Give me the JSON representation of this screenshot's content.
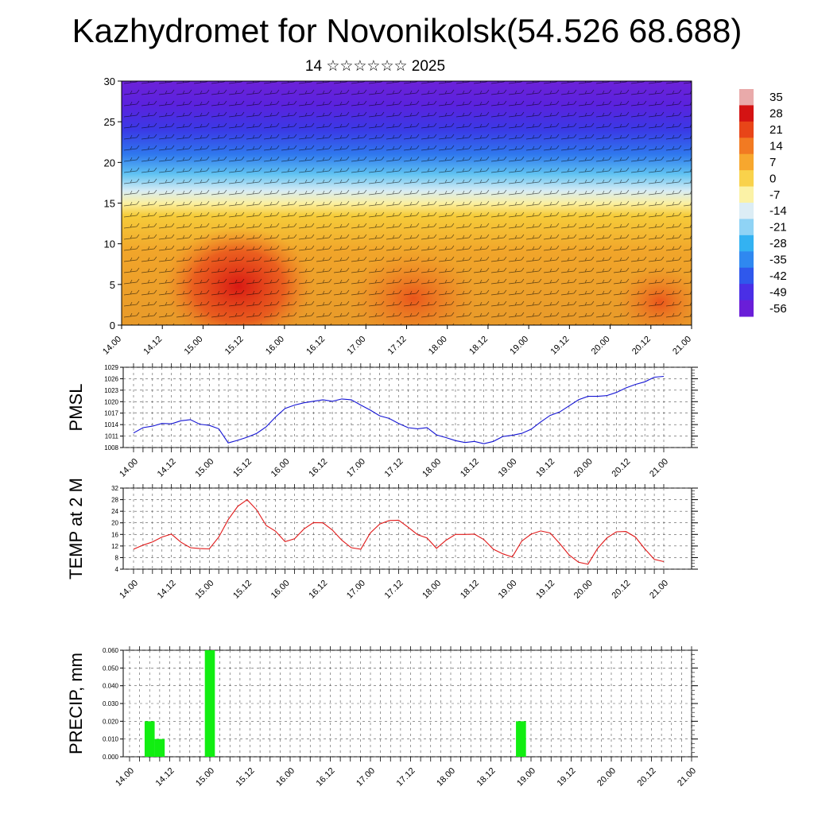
{
  "title": "Kazhydromet for Novonikolsk(54.526 68.688)",
  "subtitle": "14 ☆☆☆☆☆☆ 2025",
  "time_labels": [
    "14.00",
    "14.12",
    "15.00",
    "15.12",
    "16.00",
    "16.12",
    "17.00",
    "17.12",
    "18.00",
    "18.12",
    "19.00",
    "19.12",
    "20.00",
    "20.12",
    "21.00"
  ],
  "chart_data": [
    {
      "type": "heatmap",
      "name_hint": "vertical cross-section",
      "xlabel": "",
      "ylabel": "",
      "y_ticks": [
        0,
        5,
        10,
        15,
        20,
        25,
        30
      ],
      "ylim": [
        0,
        30
      ],
      "colorbar_levels": [
        35,
        28,
        21,
        14,
        7,
        0,
        -7,
        -14,
        -21,
        -28,
        -35,
        -42,
        -49,
        -56
      ],
      "colors": {
        "-56": "#6a1ed8",
        "-49": "#4a2fe6",
        "-42": "#2f58ec",
        "-35": "#2f88f0",
        "-28": "#33b2f2",
        "-21": "#8fd3f5",
        "-14": "#dcedf5",
        "-7": "#fbf2a6",
        "0": "#f9d24b",
        "7": "#f7a72e",
        "14": "#f27a22",
        "21": "#e84518",
        "28": "#d41313",
        "35": "#e9aaaa"
      }
    },
    {
      "type": "line",
      "ylabel": "PMSL",
      "y_ticks": [
        1008,
        1011,
        1014,
        1017,
        1020,
        1023,
        1026,
        1029
      ],
      "ylim": [
        1008,
        1029
      ],
      "color": "#1414d4",
      "x": [
        0,
        3,
        6,
        9,
        12,
        15,
        18,
        21,
        24,
        27,
        30,
        33,
        36,
        39,
        42,
        45,
        48,
        51,
        54,
        57,
        60,
        63,
        66,
        69,
        72,
        75,
        78,
        81,
        84,
        87,
        90,
        93,
        96,
        99,
        102,
        105,
        108,
        111,
        114,
        117,
        120,
        123,
        126,
        129,
        132,
        135,
        138,
        141,
        144,
        147,
        150,
        153,
        156,
        159,
        162,
        165,
        168
      ],
      "values": [
        1011.8,
        1013.2,
        1013.6,
        1014.3,
        1014.2,
        1015.0,
        1015.3,
        1014.1,
        1013.8,
        1012.9,
        1009.2,
        1009.9,
        1010.7,
        1011.7,
        1013.4,
        1016.0,
        1018.2,
        1019.1,
        1019.7,
        1020.1,
        1020.5,
        1020.1,
        1020.7,
        1020.5,
        1019.1,
        1017.8,
        1016.3,
        1015.6,
        1014.3,
        1013.2,
        1012.9,
        1013.2,
        1011.3,
        1010.6,
        1009.8,
        1009.3,
        1009.6,
        1009.0,
        1009.6,
        1010.9,
        1011.2,
        1011.7,
        1012.8,
        1014.7,
        1016.4,
        1017.3,
        1018.9,
        1020.5,
        1021.4,
        1021.4,
        1021.6,
        1022.4,
        1023.6,
        1024.5,
        1025.2,
        1026.4,
        1026.6
      ],
      "xlabel": ""
    },
    {
      "type": "line",
      "ylabel": "TEMP at 2 M",
      "y_ticks": [
        4,
        8,
        12,
        16,
        20,
        24,
        28,
        32
      ],
      "ylim": [
        4,
        32
      ],
      "color": "#e01818",
      "x": [
        0,
        3,
        6,
        9,
        12,
        15,
        18,
        21,
        24,
        27,
        30,
        33,
        36,
        39,
        42,
        45,
        48,
        51,
        54,
        57,
        60,
        63,
        66,
        69,
        72,
        75,
        78,
        81,
        84,
        87,
        90,
        93,
        96,
        99,
        102,
        105,
        108,
        111,
        114,
        117,
        120,
        123,
        126,
        129,
        132,
        135,
        138,
        141,
        144,
        147,
        150,
        153,
        156,
        159,
        162,
        165,
        168
      ],
      "values": [
        10.9,
        12.3,
        13.4,
        15.1,
        16.1,
        13.3,
        11.4,
        11.1,
        11.0,
        15.1,
        21.1,
        25.7,
        28.0,
        24.5,
        19.1,
        17.1,
        13.5,
        14.5,
        17.9,
        20.1,
        20.0,
        17.5,
        14.0,
        11.4,
        10.9,
        16.5,
        19.6,
        20.8,
        20.9,
        18.5,
        15.9,
        14.8,
        11.2,
        14.0,
        16.0,
        16.0,
        16.1,
        14.2,
        10.9,
        9.3,
        8.2,
        13.7,
        16.1,
        17.2,
        16.5,
        12.9,
        8.9,
        6.4,
        5.7,
        11.1,
        14.8,
        16.9,
        17.0,
        15.1,
        11.0,
        7.4,
        6.6
      ],
      "xlabel": ""
    },
    {
      "type": "bar",
      "ylabel": "PRECIP, mm",
      "y_ticks": [
        "0.000",
        "0.010",
        "0.020",
        "0.030",
        "0.040",
        "0.050",
        "0.060"
      ],
      "ylim": [
        0,
        0.06
      ],
      "color": "#11ee11",
      "x": [
        6,
        9,
        24,
        117
      ],
      "values": [
        0.02,
        0.01,
        0.06,
        0.02
      ],
      "xlabel": ""
    }
  ]
}
